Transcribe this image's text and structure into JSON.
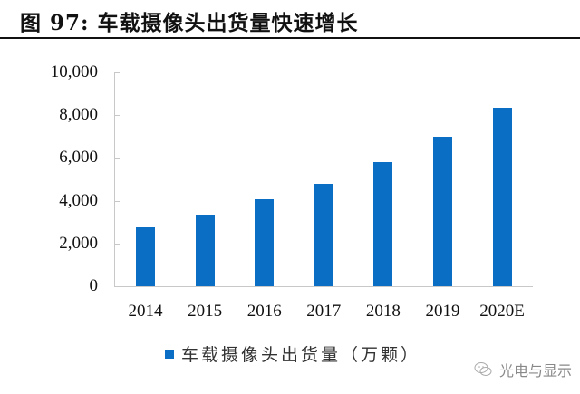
{
  "title": "图 97:  车载摄像头出货量快速增长",
  "watermark": {
    "text": "光电与显示",
    "icon": "wechat-icon"
  },
  "colors": {
    "bar": "#0A6EC4",
    "axis": "#c8c8c8",
    "title_rule": "#111111"
  },
  "chart_data": {
    "type": "bar",
    "title": "车载摄像头出货量快速增长",
    "categories": [
      "2014",
      "2015",
      "2016",
      "2017",
      "2018",
      "2019",
      "2020E"
    ],
    "series": [
      {
        "name": "车载摄像头出货量（万颗）",
        "values": [
          2770,
          3360,
          4080,
          4800,
          5790,
          6980,
          8340
        ]
      }
    ],
    "xlabel": "",
    "ylabel": "",
    "ylim": [
      0,
      10000
    ],
    "yticks": [
      "0",
      "2,000",
      "4,000",
      "6,000",
      "8,000",
      "10,000"
    ],
    "grid": false,
    "legend_position": "bottom"
  },
  "legend": {
    "label": "车载摄像头出货量（万颗）"
  }
}
